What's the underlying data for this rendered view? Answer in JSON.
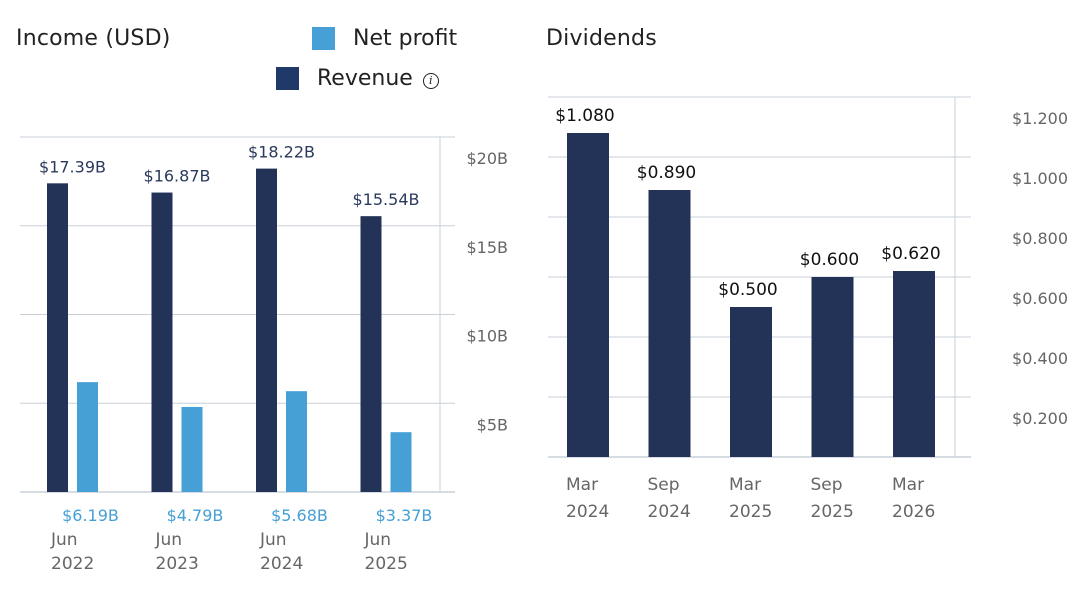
{
  "colors": {
    "revenue": "#233357",
    "net_profit": "#46a0d6",
    "dividends": "#233357",
    "grid": "#c9d0d8",
    "axis_text": "#666666",
    "revenue_label": "#2b3a5c",
    "net_profit_label": "#46a0d6",
    "dividend_label": "#111111"
  },
  "income": {
    "title": "Income (USD)",
    "legend": {
      "net_profit": "Net profit",
      "revenue": "Revenue",
      "info_icon": "i"
    }
  },
  "dividends": {
    "title": "Dividends"
  },
  "chart_data": [
    {
      "type": "bar",
      "title": "Income (USD)",
      "categories": [
        [
          "Jun",
          "2022"
        ],
        [
          "Jun",
          "2023"
        ],
        [
          "Jun",
          "2024"
        ],
        [
          "Jun",
          "2025"
        ]
      ],
      "series": [
        {
          "name": "Revenue",
          "values": [
            17.39,
            16.87,
            18.22,
            15.54
          ],
          "labels": [
            "$17.39B",
            "$16.87B",
            "$18.22B",
            "$15.54B"
          ]
        },
        {
          "name": "Net profit",
          "values": [
            6.19,
            4.79,
            5.68,
            3.37
          ],
          "labels": [
            "$6.19B",
            "$4.79B",
            "$5.68B",
            "$3.37B"
          ]
        }
      ],
      "yunit": "B USD",
      "ylim": [
        0,
        20
      ],
      "yticks": [
        5,
        10,
        15,
        20
      ],
      "ytick_labels": [
        "$5B",
        "$10B",
        "$15B",
        "$20B"
      ],
      "yaxis_side": "right",
      "grid": true,
      "legend_position": "top-right"
    },
    {
      "type": "bar",
      "title": "Dividends",
      "categories": [
        [
          "Mar",
          "2024"
        ],
        [
          "Sep",
          "2024"
        ],
        [
          "Mar",
          "2025"
        ],
        [
          "Sep",
          "2025"
        ],
        [
          "Mar",
          "2026"
        ]
      ],
      "series": [
        {
          "name": "Dividends",
          "values": [
            1.08,
            0.89,
            0.5,
            0.6,
            0.62
          ],
          "labels": [
            "$1.080",
            "$0.890",
            "$0.500",
            "$0.600",
            "$0.620"
          ]
        }
      ],
      "ylim": [
        0,
        1.2
      ],
      "yticks": [
        0.2,
        0.4,
        0.6,
        0.8,
        1.0,
        1.2
      ],
      "ytick_labels": [
        "$0.200",
        "$0.400",
        "$0.600",
        "$0.800",
        "$1.000",
        "$1.200"
      ],
      "yaxis_side": "right",
      "grid": true
    }
  ]
}
